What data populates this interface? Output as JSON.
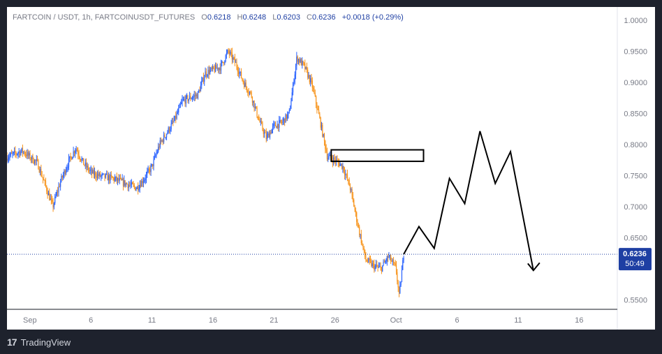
{
  "header": {
    "symbol_line": "FARTCOIN / USDT, 1h, FARTCOINUSDT_FUTURES",
    "ohlc": [
      {
        "key": "O",
        "value": "0.6218"
      },
      {
        "key": "H",
        "value": "0.6248"
      },
      {
        "key": "L",
        "value": "0.6203"
      },
      {
        "key": "C",
        "value": "0.6236"
      }
    ],
    "change": "+0.0018 (+0.29%)"
  },
  "price_badge": {
    "price": "0.6236",
    "countdown": "50:49"
  },
  "footer": {
    "brand": "TradingView",
    "logo": "17"
  },
  "colors": {
    "background": "#ffffff",
    "up": "#2962ff",
    "down": "#f7931a",
    "badge": "#1e3fa3",
    "drawing": "#000000"
  },
  "chart_data": {
    "type": "candlestick",
    "y_ticks": [
      "1.0000",
      "0.9500",
      "0.9000",
      "0.8500",
      "0.8000",
      "0.7500",
      "0.7000",
      "0.6500",
      "0.5500"
    ],
    "ylim": [
      0.535,
      1.01
    ],
    "x_ticks": [
      "Sep",
      "6",
      "11",
      "16",
      "21",
      "26",
      "Oct",
      "6",
      "11",
      "16"
    ],
    "price_trace": [
      [
        0,
        0.78
      ],
      [
        1,
        0.79
      ],
      [
        2,
        0.77
      ],
      [
        2.5,
        0.735
      ],
      [
        3,
        0.7
      ],
      [
        3.5,
        0.74
      ],
      [
        4,
        0.77
      ],
      [
        4.5,
        0.795
      ],
      [
        5,
        0.77
      ],
      [
        5.5,
        0.755
      ],
      [
        6,
        0.75
      ],
      [
        7,
        0.745
      ],
      [
        8,
        0.735
      ],
      [
        8.5,
        0.73
      ],
      [
        9,
        0.745
      ],
      [
        9.5,
        0.765
      ],
      [
        10,
        0.8
      ],
      [
        10.5,
        0.82
      ],
      [
        11,
        0.84
      ],
      [
        11.5,
        0.87
      ],
      [
        12,
        0.875
      ],
      [
        12.5,
        0.88
      ],
      [
        13,
        0.915
      ],
      [
        13.5,
        0.92
      ],
      [
        14,
        0.925
      ],
      [
        14.5,
        0.95
      ],
      [
        15,
        0.93
      ],
      [
        15.5,
        0.9
      ],
      [
        16,
        0.88
      ],
      [
        16.5,
        0.84
      ],
      [
        17,
        0.81
      ],
      [
        17.5,
        0.83
      ],
      [
        18,
        0.835
      ],
      [
        18.5,
        0.85
      ],
      [
        19,
        0.94
      ],
      [
        19.5,
        0.925
      ],
      [
        20,
        0.895
      ],
      [
        20.5,
        0.84
      ],
      [
        21,
        0.78
      ],
      [
        21.5,
        0.775
      ],
      [
        22,
        0.765
      ],
      [
        22.5,
        0.73
      ],
      [
        23,
        0.67
      ],
      [
        23.5,
        0.615
      ],
      [
        24,
        0.605
      ],
      [
        24.5,
        0.6
      ],
      [
        25,
        0.62
      ],
      [
        25.5,
        0.6
      ],
      [
        25.7,
        0.555
      ],
      [
        26,
        0.6236
      ]
    ],
    "resistance_zone": {
      "x_start": 21.25,
      "x_end": 27.3,
      "y_top": 0.7915,
      "y_bottom": 0.773
    },
    "projection_path": [
      [
        26,
        0.6236
      ],
      [
        27,
        0.668
      ],
      [
        28,
        0.633
      ],
      [
        29,
        0.7455
      ],
      [
        30,
        0.705
      ],
      [
        31,
        0.8215
      ],
      [
        32,
        0.7375
      ],
      [
        33,
        0.7885
      ],
      [
        34.5,
        0.5975
      ]
    ],
    "last_price": 0.6236
  }
}
